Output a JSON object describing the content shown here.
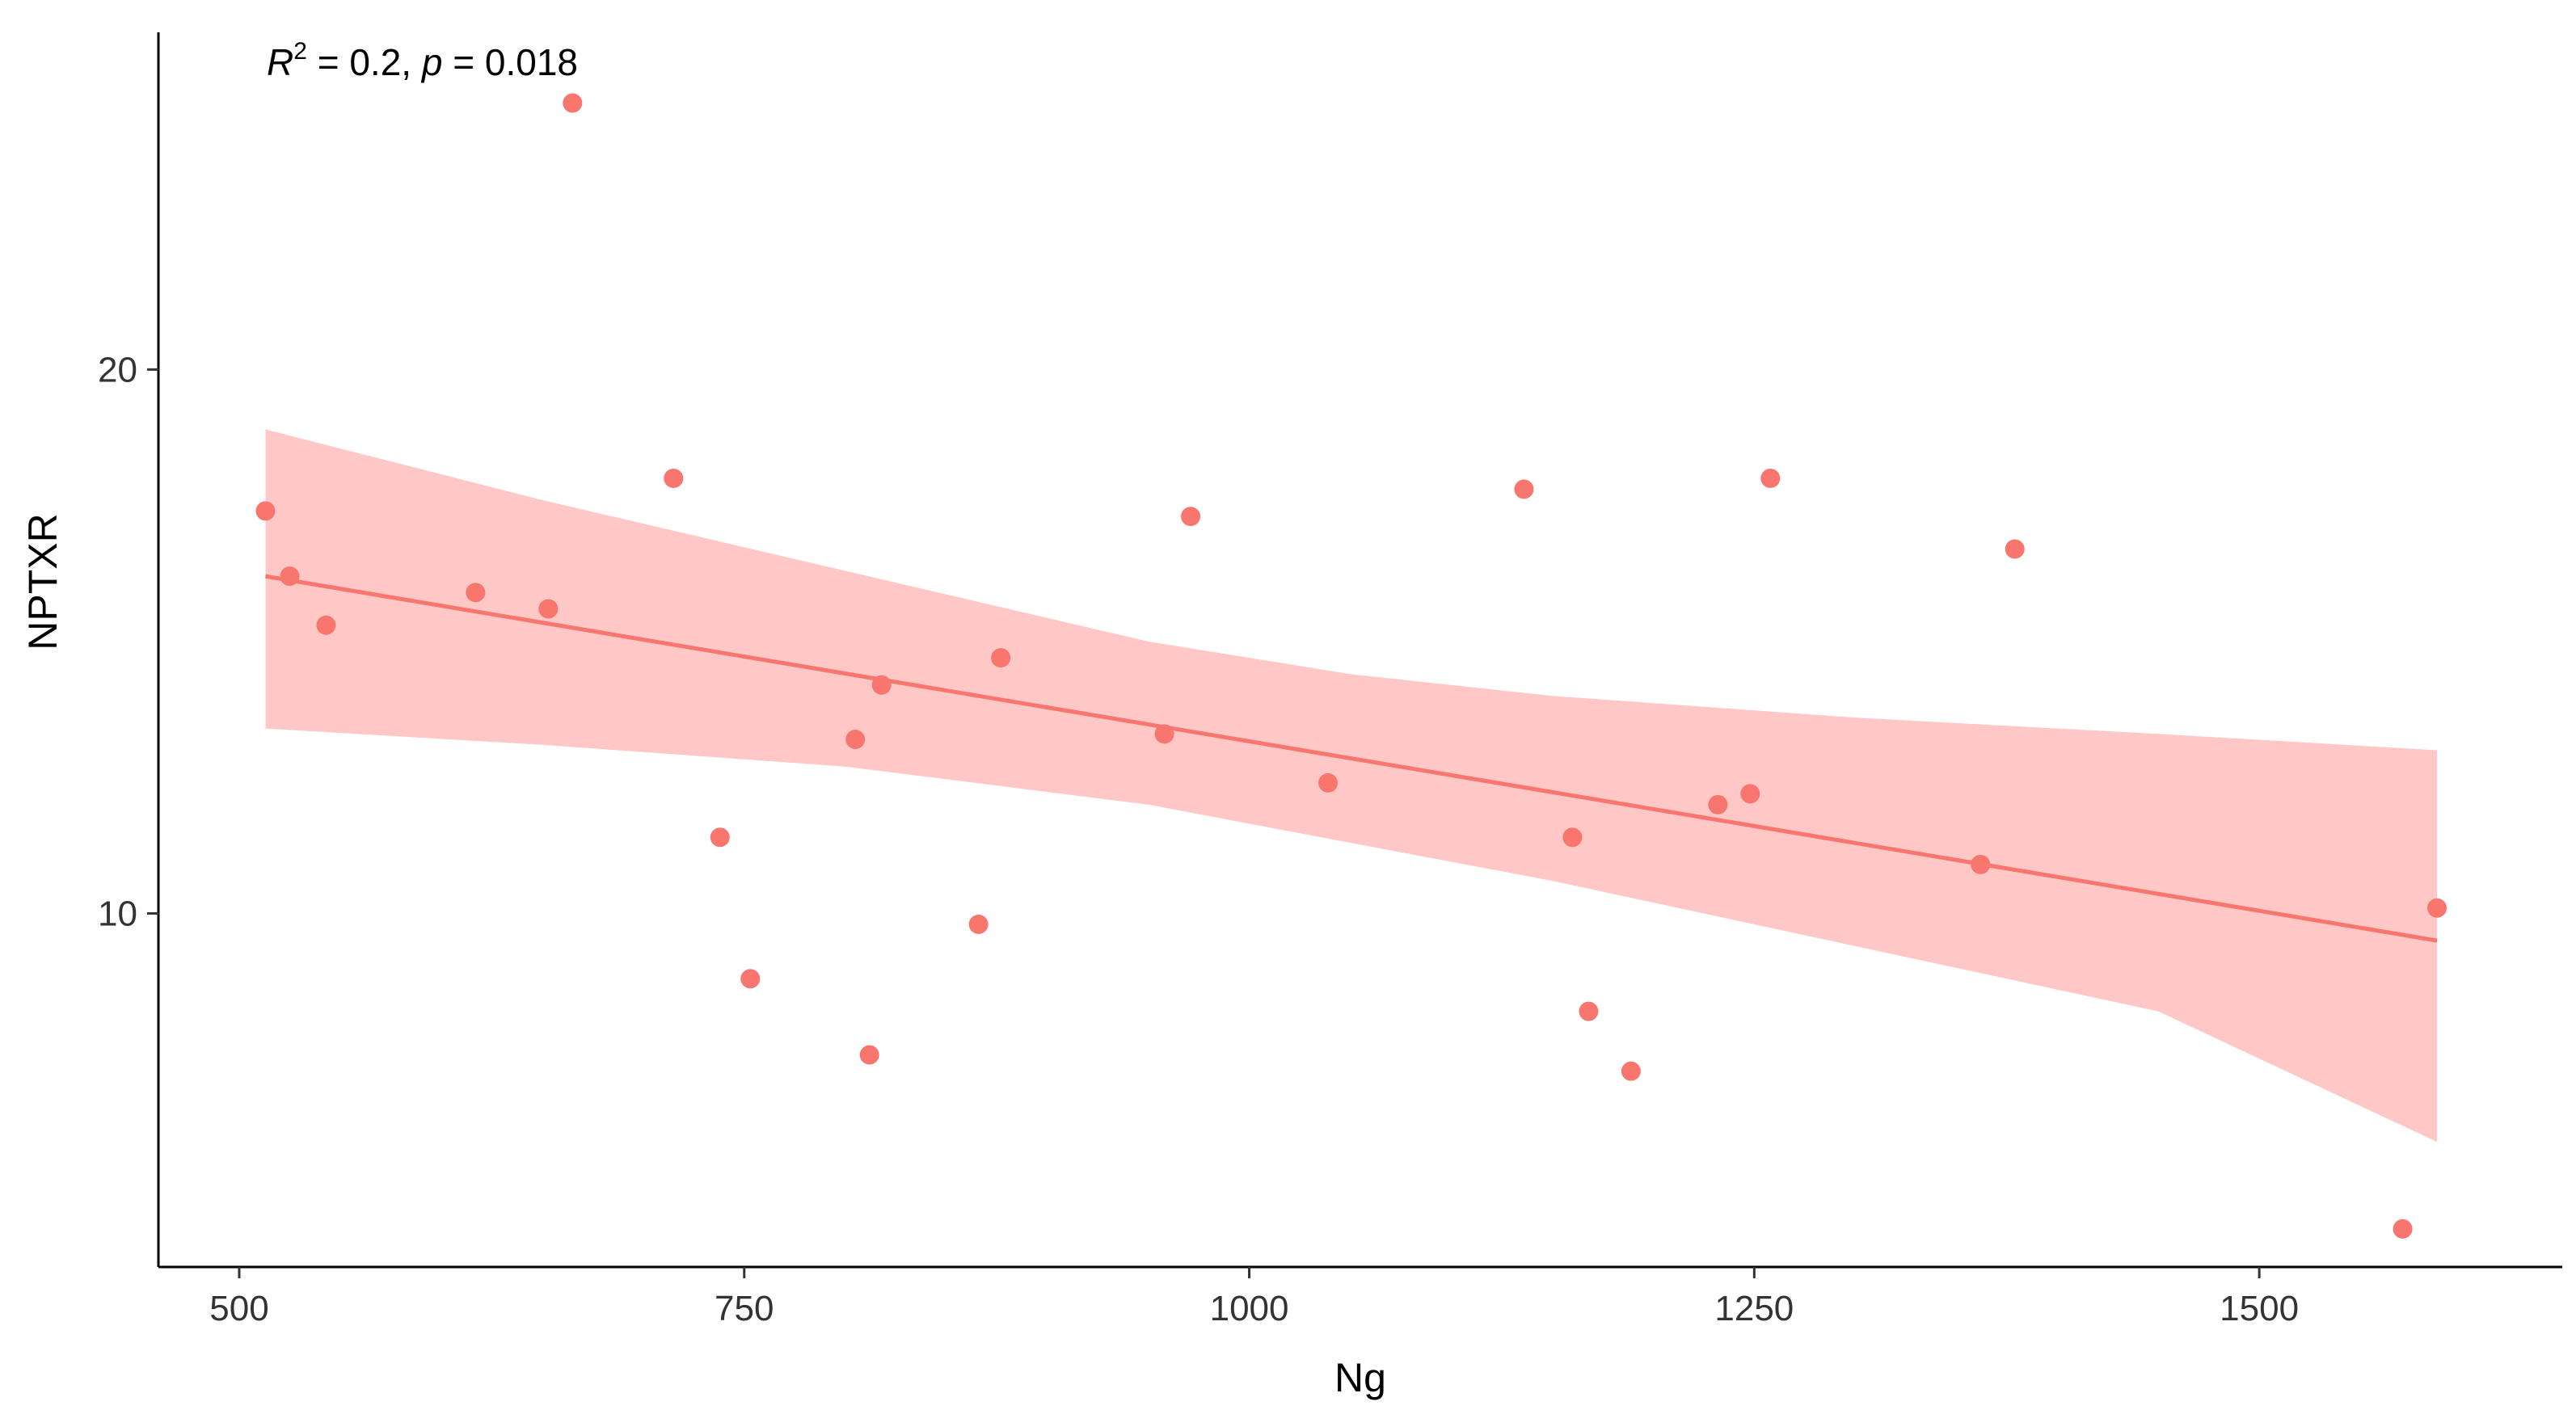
{
  "chart_data": {
    "type": "scatter",
    "xlabel": "Ng",
    "ylabel": "NPTXR",
    "xlim": [
      460,
      1650
    ],
    "ylim": [
      3.5,
      26.2
    ],
    "x_ticks": [
      500,
      750,
      1000,
      1250,
      1500
    ],
    "x_tick_labels": [
      "500",
      "750",
      "1000",
      "1250",
      "1500"
    ],
    "y_ticks": [
      10,
      20
    ],
    "y_tick_labels": [
      "10",
      "20"
    ],
    "grid": false,
    "annotation": {
      "r_symbol": "R",
      "r_exponent": "2",
      "r_value": " = 0.2, ",
      "p_symbol": "p",
      "p_value": " = 0.018"
    },
    "color": "#F8766D",
    "band_color": "#FFC8C6",
    "points": [
      {
        "x": 513,
        "y": 17.4
      },
      {
        "x": 525,
        "y": 16.2
      },
      {
        "x": 543,
        "y": 15.3
      },
      {
        "x": 617,
        "y": 15.9
      },
      {
        "x": 653,
        "y": 15.6
      },
      {
        "x": 665,
        "y": 24.9
      },
      {
        "x": 715,
        "y": 18.0
      },
      {
        "x": 738,
        "y": 11.4
      },
      {
        "x": 753,
        "y": 8.8
      },
      {
        "x": 805,
        "y": 13.2
      },
      {
        "x": 812,
        "y": 7.4
      },
      {
        "x": 818,
        "y": 14.2
      },
      {
        "x": 866,
        "y": 9.8
      },
      {
        "x": 877,
        "y": 14.7
      },
      {
        "x": 958,
        "y": 13.3
      },
      {
        "x": 971,
        "y": 17.3
      },
      {
        "x": 1039,
        "y": 12.4
      },
      {
        "x": 1136,
        "y": 17.8
      },
      {
        "x": 1160,
        "y": 11.4
      },
      {
        "x": 1168,
        "y": 8.2
      },
      {
        "x": 1189,
        "y": 7.1
      },
      {
        "x": 1232,
        "y": 12.0
      },
      {
        "x": 1248,
        "y": 12.2
      },
      {
        "x": 1258,
        "y": 18.0
      },
      {
        "x": 1362,
        "y": 10.9
      },
      {
        "x": 1379,
        "y": 16.7
      },
      {
        "x": 1571,
        "y": 4.2
      },
      {
        "x": 1588,
        "y": 10.1
      }
    ],
    "regression_line": [
      {
        "x": 513,
        "y": 16.2
      },
      {
        "x": 1588,
        "y": 9.5
      }
    ],
    "confidence_band": {
      "x": [
        513,
        650,
        800,
        950,
        1050,
        1150,
        1300,
        1450,
        1588
      ],
      "upper": [
        18.9,
        17.6,
        16.3,
        15.0,
        14.4,
        14.0,
        13.6,
        13.3,
        13.0
      ],
      "lower": [
        13.4,
        13.1,
        12.7,
        12.0,
        11.3,
        10.6,
        9.4,
        8.2,
        5.8
      ]
    }
  }
}
